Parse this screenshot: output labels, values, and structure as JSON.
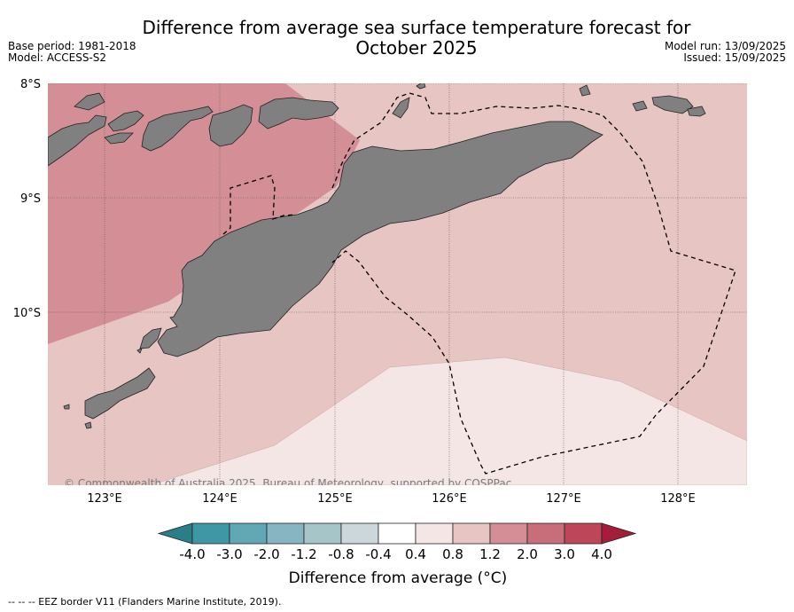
{
  "header": {
    "title_line1": "Difference from average sea surface temperature forecast for",
    "title_line2": "October 2025",
    "base_period": "Base period: 1981-2018",
    "model": "Model: ACCESS-S2",
    "model_run": "Model run: 13/09/2025",
    "issued": "Issued: 15/09/2025"
  },
  "map": {
    "lat_labels": [
      "8°S",
      "9°S",
      "10°S"
    ],
    "lon_labels": [
      "123°E",
      "124°E",
      "125°E",
      "126°E",
      "127°E",
      "128°E"
    ],
    "copyright": "© Commonwealth of Australia 2025, Bureau of Meteorology, supported by COSPPac",
    "colors": {
      "land": "#808080",
      "sst_0_4_to_0_8": "#f4e6e4",
      "sst_0_8_to_1_2": "#e7c5c2",
      "sst_1_2_to_2_0": "#d48f96",
      "eez_line": "#000000"
    }
  },
  "colorbar": {
    "tick_labels": [
      "-4.0",
      "-3.0",
      "-2.0",
      "-1.2",
      "-0.8",
      "-0.4",
      "0.4",
      "0.8",
      "1.2",
      "2.0",
      "3.0",
      "4.0"
    ],
    "colors": [
      "#3f97a5",
      "#62a7b4",
      "#85b6c1",
      "#a6c5c8",
      "#cbd7da",
      "#ffffff",
      "#f4e6e4",
      "#e7c5c2",
      "#d48f96",
      "#c86d7a",
      "#bd4758"
    ],
    "under_color": "#2a7e88",
    "over_color": "#a61d3a",
    "label": "Difference from average (°C)"
  },
  "footer": {
    "eez_note": "--  --  -- EEZ border V11 (Flanders Marine Institute, 2019)."
  }
}
